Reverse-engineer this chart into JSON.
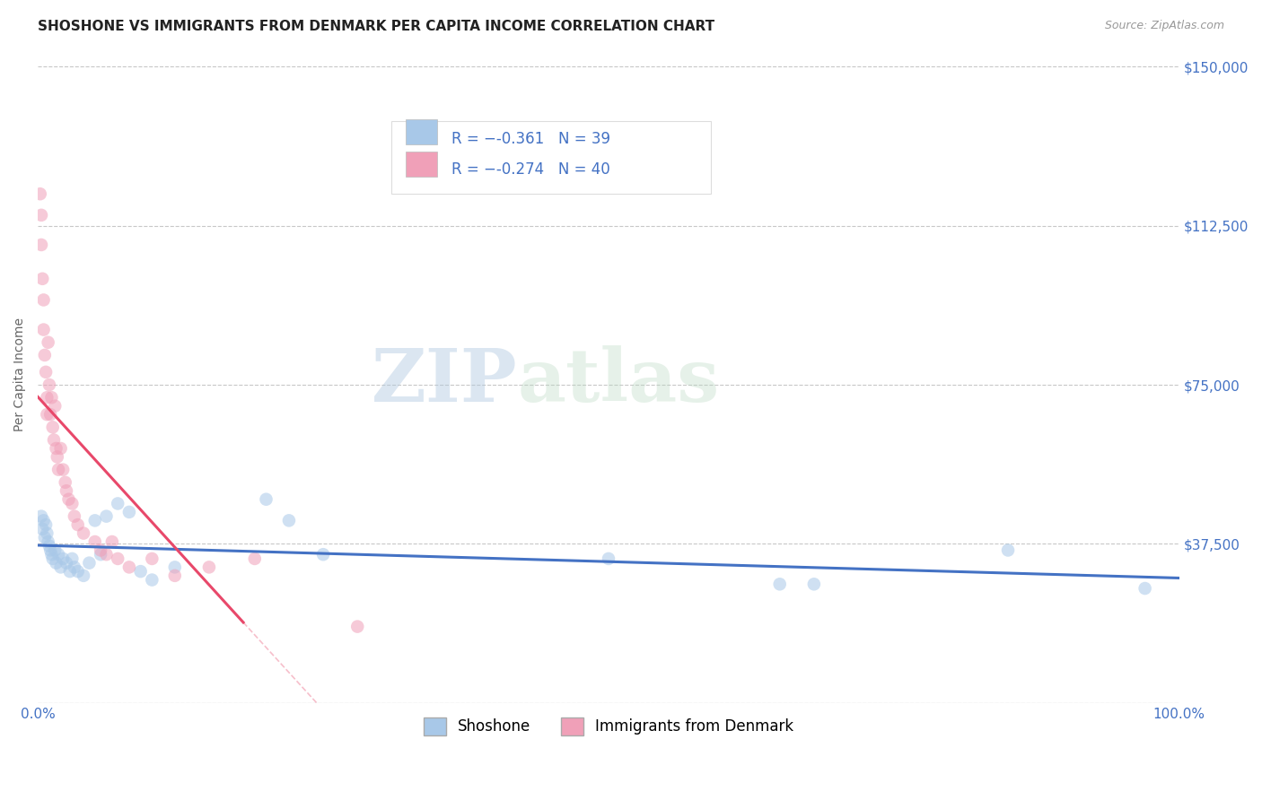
{
  "title": "SHOSHONE VS IMMIGRANTS FROM DENMARK PER CAPITA INCOME CORRELATION CHART",
  "source": "Source: ZipAtlas.com",
  "ylabel": "Per Capita Income",
  "xlim": [
    0.0,
    1.0
  ],
  "ylim": [
    0,
    155000
  ],
  "yticks": [
    0,
    37500,
    75000,
    112500,
    150000
  ],
  "background_color": "#ffffff",
  "grid_color": "#c8c8c8",
  "watermark_zip": "ZIP",
  "watermark_atlas": "atlas",
  "blue_color": "#a8c8e8",
  "pink_color": "#f0a0b8",
  "blue_line_color": "#4472c4",
  "pink_line_color": "#e8486a",
  "legend_text_color": "#4472c4",
  "legend_R_blue": "-0.361",
  "legend_N_blue": "39",
  "legend_R_pink": "-0.274",
  "legend_N_pink": "40",
  "label_blue": "Shoshone",
  "label_pink": "Immigrants from Denmark",
  "shoshone_x": [
    0.003,
    0.004,
    0.005,
    0.006,
    0.007,
    0.008,
    0.009,
    0.01,
    0.011,
    0.012,
    0.013,
    0.015,
    0.016,
    0.018,
    0.02,
    0.022,
    0.025,
    0.028,
    0.03,
    0.032,
    0.035,
    0.04,
    0.045,
    0.05,
    0.055,
    0.06,
    0.07,
    0.08,
    0.09,
    0.1,
    0.12,
    0.2,
    0.22,
    0.25,
    0.5,
    0.65,
    0.68,
    0.85,
    0.97
  ],
  "shoshone_y": [
    44000,
    41000,
    43000,
    39000,
    42000,
    40000,
    38000,
    37000,
    36000,
    35000,
    34000,
    36000,
    33000,
    35000,
    32000,
    34000,
    33000,
    31000,
    34000,
    32000,
    31000,
    30000,
    33000,
    43000,
    35000,
    44000,
    47000,
    45000,
    31000,
    29000,
    32000,
    48000,
    43000,
    35000,
    34000,
    28000,
    28000,
    36000,
    27000
  ],
  "denmark_x": [
    0.002,
    0.003,
    0.003,
    0.004,
    0.005,
    0.005,
    0.006,
    0.007,
    0.008,
    0.008,
    0.009,
    0.01,
    0.011,
    0.012,
    0.013,
    0.014,
    0.015,
    0.016,
    0.017,
    0.018,
    0.02,
    0.022,
    0.024,
    0.025,
    0.027,
    0.03,
    0.032,
    0.035,
    0.04,
    0.05,
    0.055,
    0.06,
    0.065,
    0.07,
    0.08,
    0.1,
    0.12,
    0.15,
    0.19,
    0.28
  ],
  "denmark_y": [
    120000,
    115000,
    108000,
    100000,
    95000,
    88000,
    82000,
    78000,
    72000,
    68000,
    85000,
    75000,
    68000,
    72000,
    65000,
    62000,
    70000,
    60000,
    58000,
    55000,
    60000,
    55000,
    52000,
    50000,
    48000,
    47000,
    44000,
    42000,
    40000,
    38000,
    36000,
    35000,
    38000,
    34000,
    32000,
    34000,
    30000,
    32000,
    34000,
    18000
  ],
  "title_fontsize": 11,
  "tick_fontsize": 11,
  "legend_fontsize": 12,
  "marker_size": 110,
  "marker_alpha": 0.55,
  "line_width": 2.2,
  "axis_color": "#4472c4",
  "ylabel_color": "#666666",
  "ylabel_fontsize": 10
}
